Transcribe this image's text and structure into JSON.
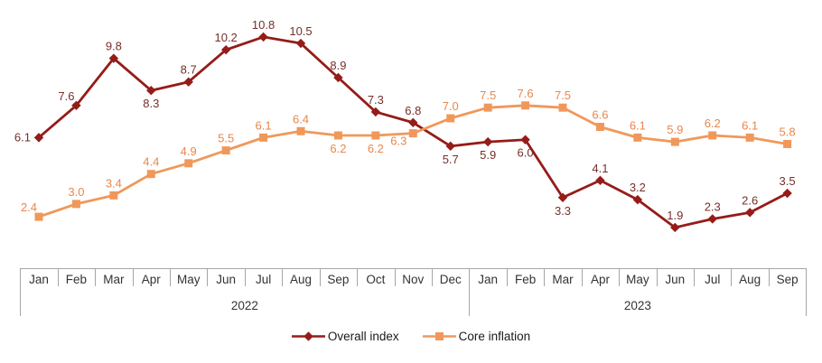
{
  "chart_data": {
    "type": "line",
    "title": "",
    "xlabel": "",
    "ylabel": "",
    "ylim": [
      0,
      11.8
    ],
    "grid": false,
    "y_axis_visible": false,
    "legend_position": "bottom",
    "categories": [
      "Jan",
      "Feb",
      "Mar",
      "Apr",
      "May",
      "Jun",
      "Jul",
      "Aug",
      "Sep",
      "Oct",
      "Nov",
      "Dec",
      "Jan",
      "Feb",
      "Mar",
      "Apr",
      "May",
      "Jun",
      "Jul",
      "Aug",
      "Sep"
    ],
    "category_groups": [
      {
        "label": "2022",
        "count": 12
      },
      {
        "label": "2023",
        "count": 9
      }
    ],
    "series": [
      {
        "name": "Overall index",
        "marker": "diamond",
        "color": "#951C18",
        "label_color": "#75302A",
        "values": [
          6.1,
          7.6,
          9.8,
          8.3,
          8.7,
          10.2,
          10.8,
          10.5,
          8.9,
          7.3,
          6.8,
          5.7,
          5.9,
          6.0,
          3.3,
          4.1,
          3.2,
          1.9,
          2.3,
          2.6,
          3.5
        ],
        "label_placements": [
          "left",
          "above-left",
          "above",
          "below",
          "above",
          "above",
          "above",
          "above",
          "above",
          "above",
          "above",
          "below",
          "below",
          "below",
          "below",
          "above",
          "above",
          "above",
          "above",
          "above",
          "above"
        ]
      },
      {
        "name": "Core inflation",
        "marker": "square",
        "color": "#F0985A",
        "label_color": "#E8874C",
        "values": [
          2.4,
          3.0,
          3.4,
          4.4,
          4.9,
          5.5,
          6.1,
          6.4,
          6.2,
          6.2,
          6.3,
          7.0,
          7.5,
          7.6,
          7.5,
          6.6,
          6.1,
          5.9,
          6.2,
          6.1,
          5.8
        ],
        "label_placements": [
          "above-left",
          "above",
          "above",
          "above",
          "above",
          "above",
          "above",
          "above",
          "below",
          "below",
          "below-left",
          "above",
          "above",
          "above",
          "above",
          "above",
          "above",
          "above",
          "above",
          "above",
          "above"
        ]
      }
    ],
    "axis_color": "#A6A6A6",
    "axis_text_color": "#333333"
  }
}
